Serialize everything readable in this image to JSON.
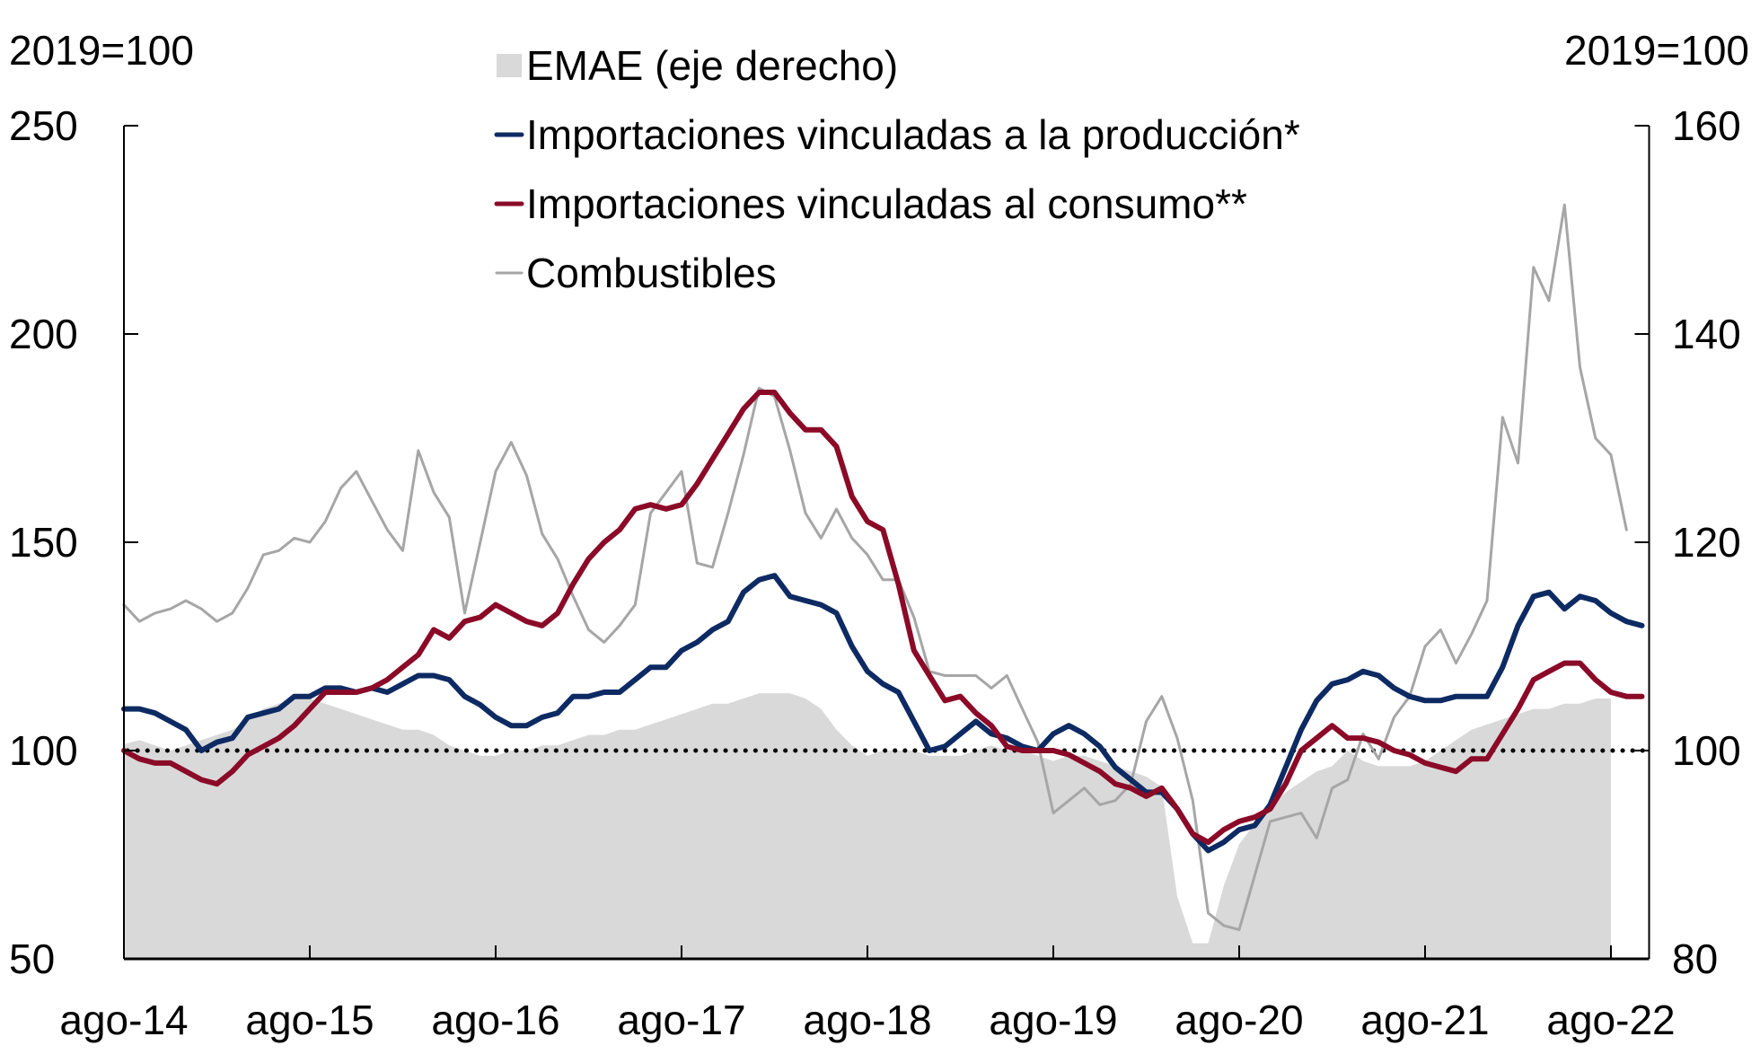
{
  "chart_data": {
    "type": "line",
    "title": "",
    "left_axis": {
      "label": "2019=100",
      "ticks": [
        50,
        100,
        150,
        200,
        250
      ],
      "range": [
        50,
        250
      ]
    },
    "right_axis": {
      "label": "2019=100",
      "ticks": [
        80,
        100,
        120,
        140,
        160
      ],
      "range": [
        80,
        160
      ]
    },
    "x_ticks": [
      "ago-14",
      "ago-15",
      "ago-16",
      "ago-17",
      "ago-18",
      "ago-19",
      "ago-20",
      "ago-21",
      "ago-22"
    ],
    "x_start": "2014-08",
    "reference_line": {
      "value": 100,
      "style": "dotted"
    },
    "legend_position": "top-center",
    "series": [
      {
        "name": "EMAE (eje derecho)",
        "type": "area",
        "axis": "right",
        "color": "#d9d9d9",
        "values": [
          100.6,
          101,
          100.5,
          100,
          100.5,
          101,
          101.5,
          102,
          103,
          104,
          104.5,
          105,
          105,
          104.5,
          104,
          103.5,
          103,
          102.5,
          102,
          102,
          101.5,
          100.5,
          100,
          99.5,
          99.5,
          100,
          100,
          100.5,
          100.5,
          101,
          101.5,
          101.5,
          102,
          102,
          102.5,
          103,
          103.5,
          104,
          104.5,
          104.5,
          105,
          105.5,
          105.5,
          105.5,
          105,
          104,
          102,
          100.5,
          99.5,
          100,
          100,
          100,
          99.5,
          99.5,
          99.5,
          100,
          100.5,
          100,
          100,
          99.5,
          99,
          99.5,
          99.5,
          99,
          98.5,
          98,
          97.5,
          96.5,
          86,
          81.5,
          81.5,
          87,
          91,
          93,
          94.5,
          96,
          97,
          98,
          98.5,
          100,
          99,
          98.5,
          98.5,
          98.5,
          99,
          100,
          101,
          102,
          102.5,
          103,
          103.5,
          104,
          104,
          104.5,
          104.5,
          105,
          105
        ]
      },
      {
        "name": "Importaciones vinculadas a la producción*",
        "type": "line",
        "axis": "left",
        "color": "#0d2a63",
        "values": [
          110,
          110,
          109,
          107,
          105,
          100,
          102,
          103,
          108,
          109,
          110,
          113,
          113,
          115,
          115,
          114,
          115,
          114,
          116,
          118,
          118,
          117,
          113,
          111,
          108,
          106,
          106,
          108,
          109,
          113,
          113,
          114,
          114,
          117,
          120,
          120,
          124,
          126,
          129,
          131,
          138,
          141,
          142,
          137,
          136,
          135,
          133,
          125,
          119,
          116,
          114,
          107,
          100,
          101,
          104,
          107,
          104,
          103,
          101,
          100,
          104,
          106,
          104,
          101,
          96,
          93,
          90,
          90,
          86,
          80,
          76,
          78,
          81,
          82,
          87,
          96,
          105,
          112,
          116,
          117,
          119,
          118,
          115,
          113,
          112,
          112,
          113,
          113,
          113,
          120,
          130,
          137,
          138,
          134,
          137,
          136,
          133,
          131,
          130
        ]
      },
      {
        "name": "Importaciones vinculadas al consumo**",
        "type": "line",
        "axis": "left",
        "color": "#8b0a27",
        "values": [
          100,
          98,
          97,
          97,
          95,
          93,
          92,
          95,
          99,
          101,
          103,
          106,
          110,
          114,
          114,
          114,
          115,
          117,
          120,
          123,
          129,
          127,
          131,
          132,
          135,
          133,
          131,
          130,
          133,
          140,
          146,
          150,
          153,
          158,
          159,
          158,
          159,
          164,
          170,
          176,
          182,
          186,
          186,
          181,
          177,
          177,
          173,
          161,
          155,
          153,
          140,
          124,
          118,
          112,
          113,
          109,
          106,
          101,
          100,
          100,
          100,
          99,
          97,
          95,
          92,
          91,
          89,
          91,
          86,
          80,
          78,
          81,
          83,
          84,
          86,
          92,
          100,
          103,
          106,
          103,
          103,
          102,
          100,
          99,
          97,
          96,
          95,
          98,
          98,
          104,
          110,
          117,
          119,
          121,
          121,
          117,
          114,
          113,
          113
        ]
      },
      {
        "name": "Combustibles",
        "type": "line",
        "axis": "left",
        "color": "#a6a6a6",
        "values": [
          135,
          131,
          133,
          134,
          136,
          134,
          131,
          133,
          139,
          147,
          148,
          151,
          150,
          155,
          163,
          167,
          160,
          153,
          148,
          172,
          162,
          156,
          133,
          150,
          167,
          174,
          166,
          152,
          146,
          137,
          129,
          126,
          130,
          135,
          157,
          162,
          167,
          145,
          144,
          157,
          171,
          187,
          185,
          172,
          157,
          151,
          158,
          151,
          147,
          141,
          141,
          132,
          119,
          118,
          118,
          118,
          115,
          118,
          110,
          102,
          85,
          88,
          91,
          87,
          88,
          92,
          107,
          113,
          103,
          88,
          61,
          58,
          57,
          70,
          83,
          84,
          85,
          79,
          91,
          93,
          104,
          98,
          108,
          113,
          125,
          129,
          121,
          128,
          136,
          180,
          169,
          216,
          208,
          231,
          192,
          175,
          171,
          153
        ]
      }
    ]
  },
  "labels": {
    "left_unit": "2019=100",
    "right_unit": "2019=100"
  }
}
